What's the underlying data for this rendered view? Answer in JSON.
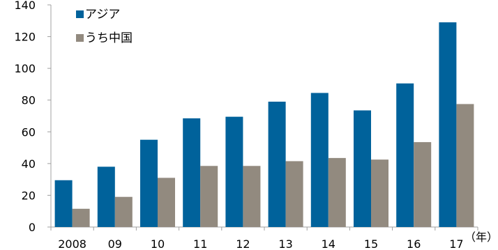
{
  "chart_data": {
    "type": "bar",
    "categories": [
      "2008",
      "09",
      "10",
      "11",
      "12",
      "13",
      "14",
      "15",
      "16",
      "17"
    ],
    "x_unit_label": "（年）",
    "series": [
      {
        "name": "アジア",
        "color": "#00629B",
        "values": [
          29.5,
          38,
          55,
          68.5,
          69.5,
          79,
          84.5,
          73.5,
          90.5,
          129
        ]
      },
      {
        "name": "うち中国",
        "color": "#928A7F",
        "values": [
          11.5,
          19,
          31,
          38.5,
          38.5,
          41.5,
          43.5,
          42.5,
          53.5,
          77.5
        ]
      }
    ],
    "ylim": [
      0,
      140
    ],
    "yticks": [
      0,
      20,
      40,
      60,
      80,
      100,
      120,
      140
    ],
    "title": "",
    "xlabel": "",
    "ylabel": "",
    "grid": false,
    "legend_position": "top-left",
    "axis_color": "#A0A0A0"
  }
}
